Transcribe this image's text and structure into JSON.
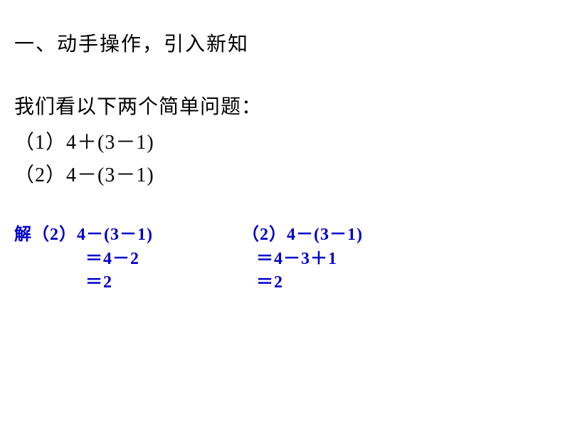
{
  "title": "一、动手操作，引入新知",
  "intro": "我们看以下两个简单问题：",
  "equations": {
    "eq1": "（1）4＋(3－1)",
    "eq2": "（2）4－(3－1)"
  },
  "solutions": {
    "left": {
      "line1": "解（2）4－(3－1)",
      "line2": "＝4－2",
      "line3": "＝2"
    },
    "right": {
      "line1": "（2）4－(3－1)",
      "line2": "＝4－3＋1",
      "line3": "＝2"
    }
  },
  "colors": {
    "background": "#ffffff",
    "text_black": "#000000",
    "text_blue": "#0000cc"
  },
  "typography": {
    "title_fontsize": 28,
    "body_fontsize": 28,
    "solution_fontsize": 24,
    "font_family": "SimSun"
  }
}
